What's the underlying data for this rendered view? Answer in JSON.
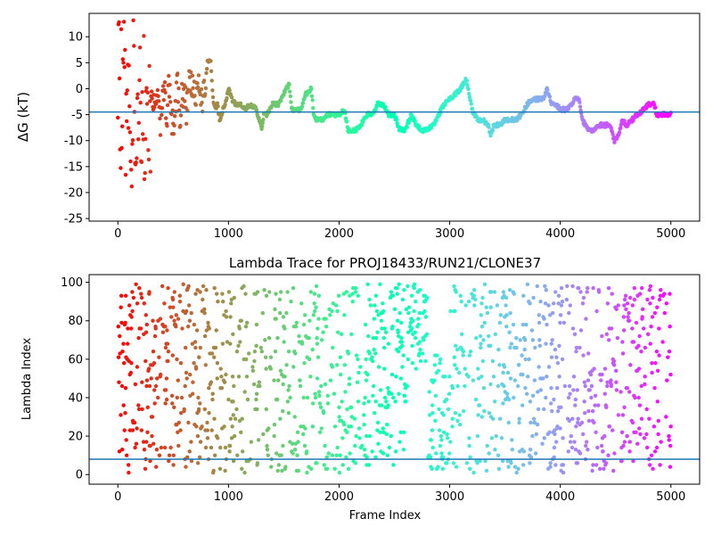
{
  "chart_data": [
    {
      "type": "scatter",
      "title": "",
      "xlabel": "",
      "ylabel": "ΔG (kT)",
      "xlim": [
        -260,
        5260
      ],
      "ylim": [
        -25.5,
        14.5
      ],
      "xticks": [
        0,
        1000,
        2000,
        3000,
        4000,
        5000
      ],
      "yticks": [
        -25,
        -20,
        -15,
        -10,
        -5,
        0,
        5,
        10
      ],
      "hline": -4.5,
      "hline_color": "#1f77b4",
      "colormap": "rainbow (red at frame 0 → purple at frame 5000)",
      "grid": false,
      "legend": "none",
      "anchors": [
        [
          0,
          0
        ],
        [
          10,
          14
        ],
        [
          20,
          -18
        ],
        [
          30,
          6
        ],
        [
          40,
          -13
        ],
        [
          50,
          2
        ],
        [
          60,
          12
        ],
        [
          70,
          -8
        ],
        [
          80,
          8
        ],
        [
          90,
          -10
        ],
        [
          100,
          -3
        ],
        [
          110,
          5
        ],
        [
          120,
          -15
        ],
        [
          130,
          -20
        ],
        [
          140,
          10
        ],
        [
          150,
          -5
        ],
        [
          160,
          -12
        ],
        [
          170,
          3
        ],
        [
          180,
          -8
        ],
        [
          200,
          -10
        ],
        [
          220,
          -6
        ],
        [
          240,
          -14
        ],
        [
          260,
          -4
        ],
        [
          280,
          -9
        ],
        [
          300,
          1
        ],
        [
          320,
          -3
        ],
        [
          340,
          -5
        ],
        [
          360,
          0
        ],
        [
          380,
          -8
        ],
        [
          400,
          -4
        ],
        [
          420,
          0
        ],
        [
          440,
          -6
        ],
        [
          460,
          0
        ],
        [
          480,
          -4
        ],
        [
          500,
          -8
        ],
        [
          520,
          -3
        ],
        [
          540,
          1
        ],
        [
          560,
          -6
        ],
        [
          580,
          -2
        ],
        [
          600,
          0
        ],
        [
          620,
          -4
        ],
        [
          650,
          2
        ],
        [
          680,
          0
        ],
        [
          700,
          -3
        ],
        [
          730,
          1
        ],
        [
          760,
          -2
        ],
        [
          790,
          0
        ],
        [
          810,
          5.5
        ],
        [
          840,
          5.5
        ],
        [
          860,
          -2
        ],
        [
          880,
          -4
        ],
        [
          900,
          -3
        ],
        [
          920,
          -6
        ],
        [
          950,
          -4
        ],
        [
          980,
          -2
        ],
        [
          1000,
          0
        ],
        [
          1030,
          -2
        ],
        [
          1060,
          -3
        ],
        [
          1100,
          -3
        ],
        [
          1150,
          -4
        ],
        [
          1200,
          -3
        ],
        [
          1250,
          -4
        ],
        [
          1280,
          -6
        ],
        [
          1300,
          -8
        ],
        [
          1320,
          -5
        ],
        [
          1350,
          -5
        ],
        [
          1400,
          -3
        ],
        [
          1450,
          -3
        ],
        [
          1500,
          -1
        ],
        [
          1550,
          1
        ],
        [
          1570,
          -4
        ],
        [
          1650,
          -4
        ],
        [
          1700,
          -1
        ],
        [
          1750,
          0
        ],
        [
          1770,
          -5
        ],
        [
          1800,
          -6
        ],
        [
          1850,
          -6
        ],
        [
          1900,
          -5
        ],
        [
          1950,
          -5
        ],
        [
          2000,
          -5
        ],
        [
          2050,
          -4
        ],
        [
          2080,
          -8
        ],
        [
          2150,
          -8
        ],
        [
          2200,
          -7
        ],
        [
          2250,
          -5
        ],
        [
          2300,
          -5
        ],
        [
          2350,
          -3
        ],
        [
          2400,
          -3
        ],
        [
          2450,
          -5
        ],
        [
          2500,
          -5
        ],
        [
          2550,
          -8
        ],
        [
          2600,
          -8
        ],
        [
          2650,
          -5
        ],
        [
          2700,
          -7
        ],
        [
          2750,
          -8
        ],
        [
          2800,
          -8
        ],
        [
          2850,
          -7
        ],
        [
          2900,
          -5
        ],
        [
          2950,
          -3
        ],
        [
          3000,
          -2
        ],
        [
          3050,
          -1
        ],
        [
          3100,
          0
        ],
        [
          3150,
          2
        ],
        [
          3170,
          0
        ],
        [
          3200,
          -4
        ],
        [
          3250,
          -6
        ],
        [
          3300,
          -6
        ],
        [
          3350,
          -7
        ],
        [
          3370,
          -9
        ],
        [
          3400,
          -7
        ],
        [
          3450,
          -7
        ],
        [
          3500,
          -6
        ],
        [
          3550,
          -6
        ],
        [
          3600,
          -6
        ],
        [
          3650,
          -5
        ],
        [
          3700,
          -3
        ],
        [
          3750,
          -2
        ],
        [
          3800,
          -2
        ],
        [
          3850,
          -2
        ],
        [
          3880,
          0
        ],
        [
          3920,
          -3
        ],
        [
          3960,
          -3
        ],
        [
          4000,
          -4
        ],
        [
          4050,
          -4
        ],
        [
          4100,
          -3
        ],
        [
          4130,
          -2
        ],
        [
          4170,
          -2
        ],
        [
          4200,
          -6
        ],
        [
          4250,
          -8
        ],
        [
          4300,
          -8
        ],
        [
          4350,
          -7
        ],
        [
          4400,
          -7
        ],
        [
          4450,
          -7
        ],
        [
          4490,
          -10
        ],
        [
          4530,
          -9
        ],
        [
          4560,
          -6
        ],
        [
          4600,
          -7
        ],
        [
          4650,
          -6
        ],
        [
          4700,
          -5
        ],
        [
          4750,
          -4
        ],
        [
          4800,
          -3
        ],
        [
          4850,
          -3
        ],
        [
          4870,
          -5
        ],
        [
          4900,
          -5
        ],
        [
          4950,
          -5
        ],
        [
          5000,
          -5
        ]
      ]
    },
    {
      "type": "scatter",
      "title": "Lambda Trace for PROJ18433/RUN21/CLONE37",
      "xlabel": "Frame Index",
      "ylabel": "Lambda Index",
      "xlim": [
        -260,
        5260
      ],
      "ylim": [
        -5,
        104
      ],
      "xticks": [
        0,
        1000,
        2000,
        3000,
        4000,
        5000
      ],
      "yticks": [
        0,
        20,
        40,
        60,
        80,
        100
      ],
      "hline": 8,
      "hline_color": "#1f77b4",
      "colormap": "rainbow (red at frame 0 → purple at frame 5000)",
      "grid": false,
      "legend": "none",
      "band_note": "between frames ~2600 and ~2800 the lambda values stay mostly in 55–100"
    }
  ]
}
